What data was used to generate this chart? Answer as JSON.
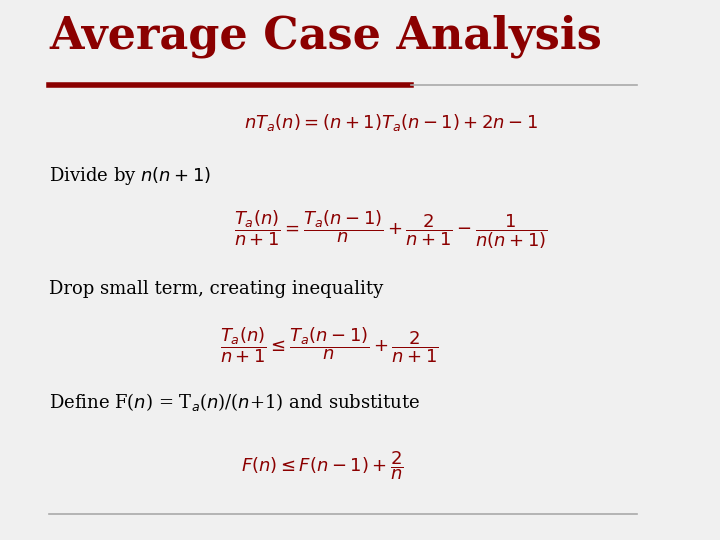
{
  "title": "Average Case Analysis",
  "title_color": "#8B0000",
  "title_fontsize": 32,
  "background_color": "#f0f0f0",
  "line_color": "#8B0000",
  "text_color": "#000000",
  "eq_color": "#8B0000",
  "label1": "Divide by $n(n+1)$",
  "label2": "Drop small term, creating inequality",
  "label3": "Define F($n$) = T$_a$($n$)/($n$+1) and substitute",
  "eq0": "$nT_a(n) = (n+1)T_a(n-1) + 2n - 1$",
  "eq1": "$\\dfrac{T_a(n)}{n+1} = \\dfrac{T_a(n-1)}{n} + \\dfrac{2}{n+1} - \\dfrac{1}{n(n+1)}$",
  "eq2": "$\\dfrac{T_a(n)}{n+1} \\leq \\dfrac{T_a(n-1)}{n} + \\dfrac{2}{n+1}$",
  "eq3": "$F(n) \\leq F(n-1) + \\dfrac{2}{n}$"
}
